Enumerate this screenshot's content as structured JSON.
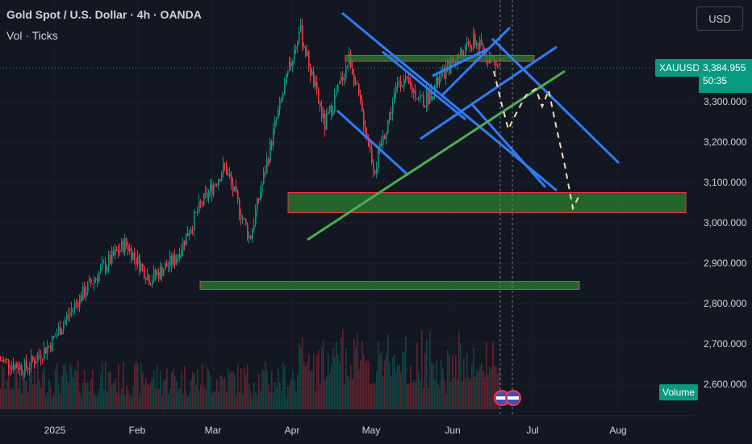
{
  "header": {
    "title": "Gold Spot / U.S. Dollar · 4h · OANDA",
    "indicator": "Vol · Ticks"
  },
  "currency_button": "USD",
  "symbol_tag": "XAUUSD",
  "price_tag": {
    "price": "3,384.955",
    "countdown": "50:35"
  },
  "volume_tag": "Volume",
  "colors": {
    "background": "#131722",
    "up": "#089981",
    "down": "#f23645",
    "trendline_blue": "#2f7cf6",
    "trendline_green": "#4caf50",
    "zone_fill": "#2e7d32",
    "projection": "#f5deb3"
  },
  "chart_data": {
    "type": "candlestick",
    "y_ticks": [
      "3,300.000",
      "3,200.000",
      "3,100.000",
      "3,000.000",
      "2,900.000",
      "2,800.000",
      "2,700.000",
      "2,600.000"
    ],
    "y_tick_values": [
      3300,
      3200,
      3100,
      3000,
      2900,
      2800,
      2700,
      2600
    ],
    "x_ticks": [
      "2025",
      "Feb",
      "Mar",
      "Apr",
      "May",
      "Jun",
      "Jul",
      "Aug"
    ],
    "ylim": [
      2570,
      3485
    ],
    "last_price": 3384.955,
    "approx_close_path": [
      {
        "x": "Dec 2024",
        "y": 2660
      },
      {
        "x": "Jan 2025",
        "y": 2640
      },
      {
        "x": "Jan 20",
        "y": 2700
      },
      {
        "x": "Feb 1",
        "y": 2800
      },
      {
        "x": "Feb 10",
        "y": 2880
      },
      {
        "x": "Feb 20",
        "y": 2950
      },
      {
        "x": "Feb 28",
        "y": 2860
      },
      {
        "x": "Mar 10",
        "y": 2910
      },
      {
        "x": "Mar 20",
        "y": 3040
      },
      {
        "x": "Apr 1",
        "y": 3140
      },
      {
        "x": "Apr 7",
        "y": 2960
      },
      {
        "x": "Apr 15",
        "y": 3240
      },
      {
        "x": "Apr 22",
        "y": 3480
      },
      {
        "x": "May 1",
        "y": 3240
      },
      {
        "x": "May 8",
        "y": 3410
      },
      {
        "x": "May 15",
        "y": 3130
      },
      {
        "x": "May 23",
        "y": 3360
      },
      {
        "x": "Jun 1",
        "y": 3300
      },
      {
        "x": "Jun 10",
        "y": 3390
      },
      {
        "x": "Jun 16",
        "y": 3450
      },
      {
        "x": "Jun 20",
        "y": 3385
      }
    ],
    "zones": [
      {
        "from": 3400,
        "to": 3415,
        "label": ""
      },
      {
        "from": 3025,
        "to": 3075,
        "label": ""
      },
      {
        "from": 2835,
        "to": 2855,
        "label": ""
      }
    ],
    "events": [
      "US",
      "US"
    ]
  }
}
